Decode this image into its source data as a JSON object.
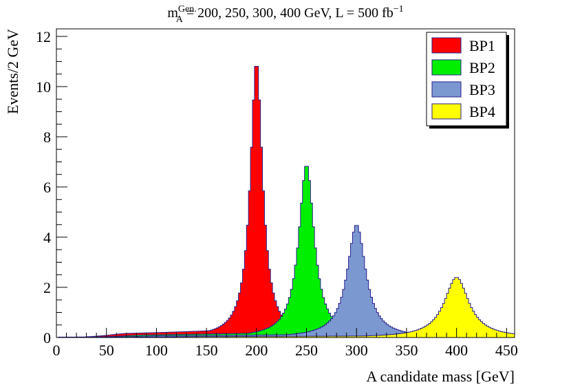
{
  "chart_data": {
    "type": "area",
    "title": "m_A^Gen. = 200, 250, 300, 400  GeV,   L = 500 fb^-1",
    "title_parts": {
      "m": "m",
      "sup": "Gen.",
      "sub": "A",
      "rest": " = 200, 250, 300, 400  GeV,   L = 500 fb",
      "lumi_exp": "−1"
    },
    "xlabel": "A candidate mass [GeV]",
    "ylabel": "Events/2 GeV",
    "xlim": [
      0,
      458
    ],
    "ylim": [
      0,
      12.3
    ],
    "bin_width": 2,
    "x_ticks": [
      0,
      50,
      100,
      150,
      200,
      250,
      300,
      350,
      400,
      450
    ],
    "x_tick_labels": [
      "0",
      "50",
      "100",
      "150",
      "200",
      "250",
      "300",
      "350",
      "400",
      "450"
    ],
    "y_ticks": [
      0,
      2,
      4,
      6,
      8,
      10,
      12
    ],
    "y_tick_labels": [
      "0",
      "2",
      "4",
      "6",
      "8",
      "10",
      "12"
    ],
    "legend_position": "top-right",
    "series": [
      {
        "name": "BP1",
        "color": "#ff0000",
        "peak_mass": 200,
        "peak_height": 11.0,
        "low_tail_at_100": 0.3,
        "base_level": 0.06
      },
      {
        "name": "BP2",
        "color": "#00ee00",
        "peak_mass": 250,
        "peak_height": 6.9,
        "low_tail_at_200": 0.3,
        "base_level": 0.05
      },
      {
        "name": "BP3",
        "color": "#7b98d0",
        "peak_mass": 300,
        "peak_height": 4.5,
        "low_tail_at_250": 0.25,
        "base_level": 0.05
      },
      {
        "name": "BP4",
        "color": "#ffff00",
        "peak_mass": 400,
        "peak_height": 2.4,
        "low_tail_at_350": 0.1,
        "base_level": 0.03
      }
    ]
  }
}
